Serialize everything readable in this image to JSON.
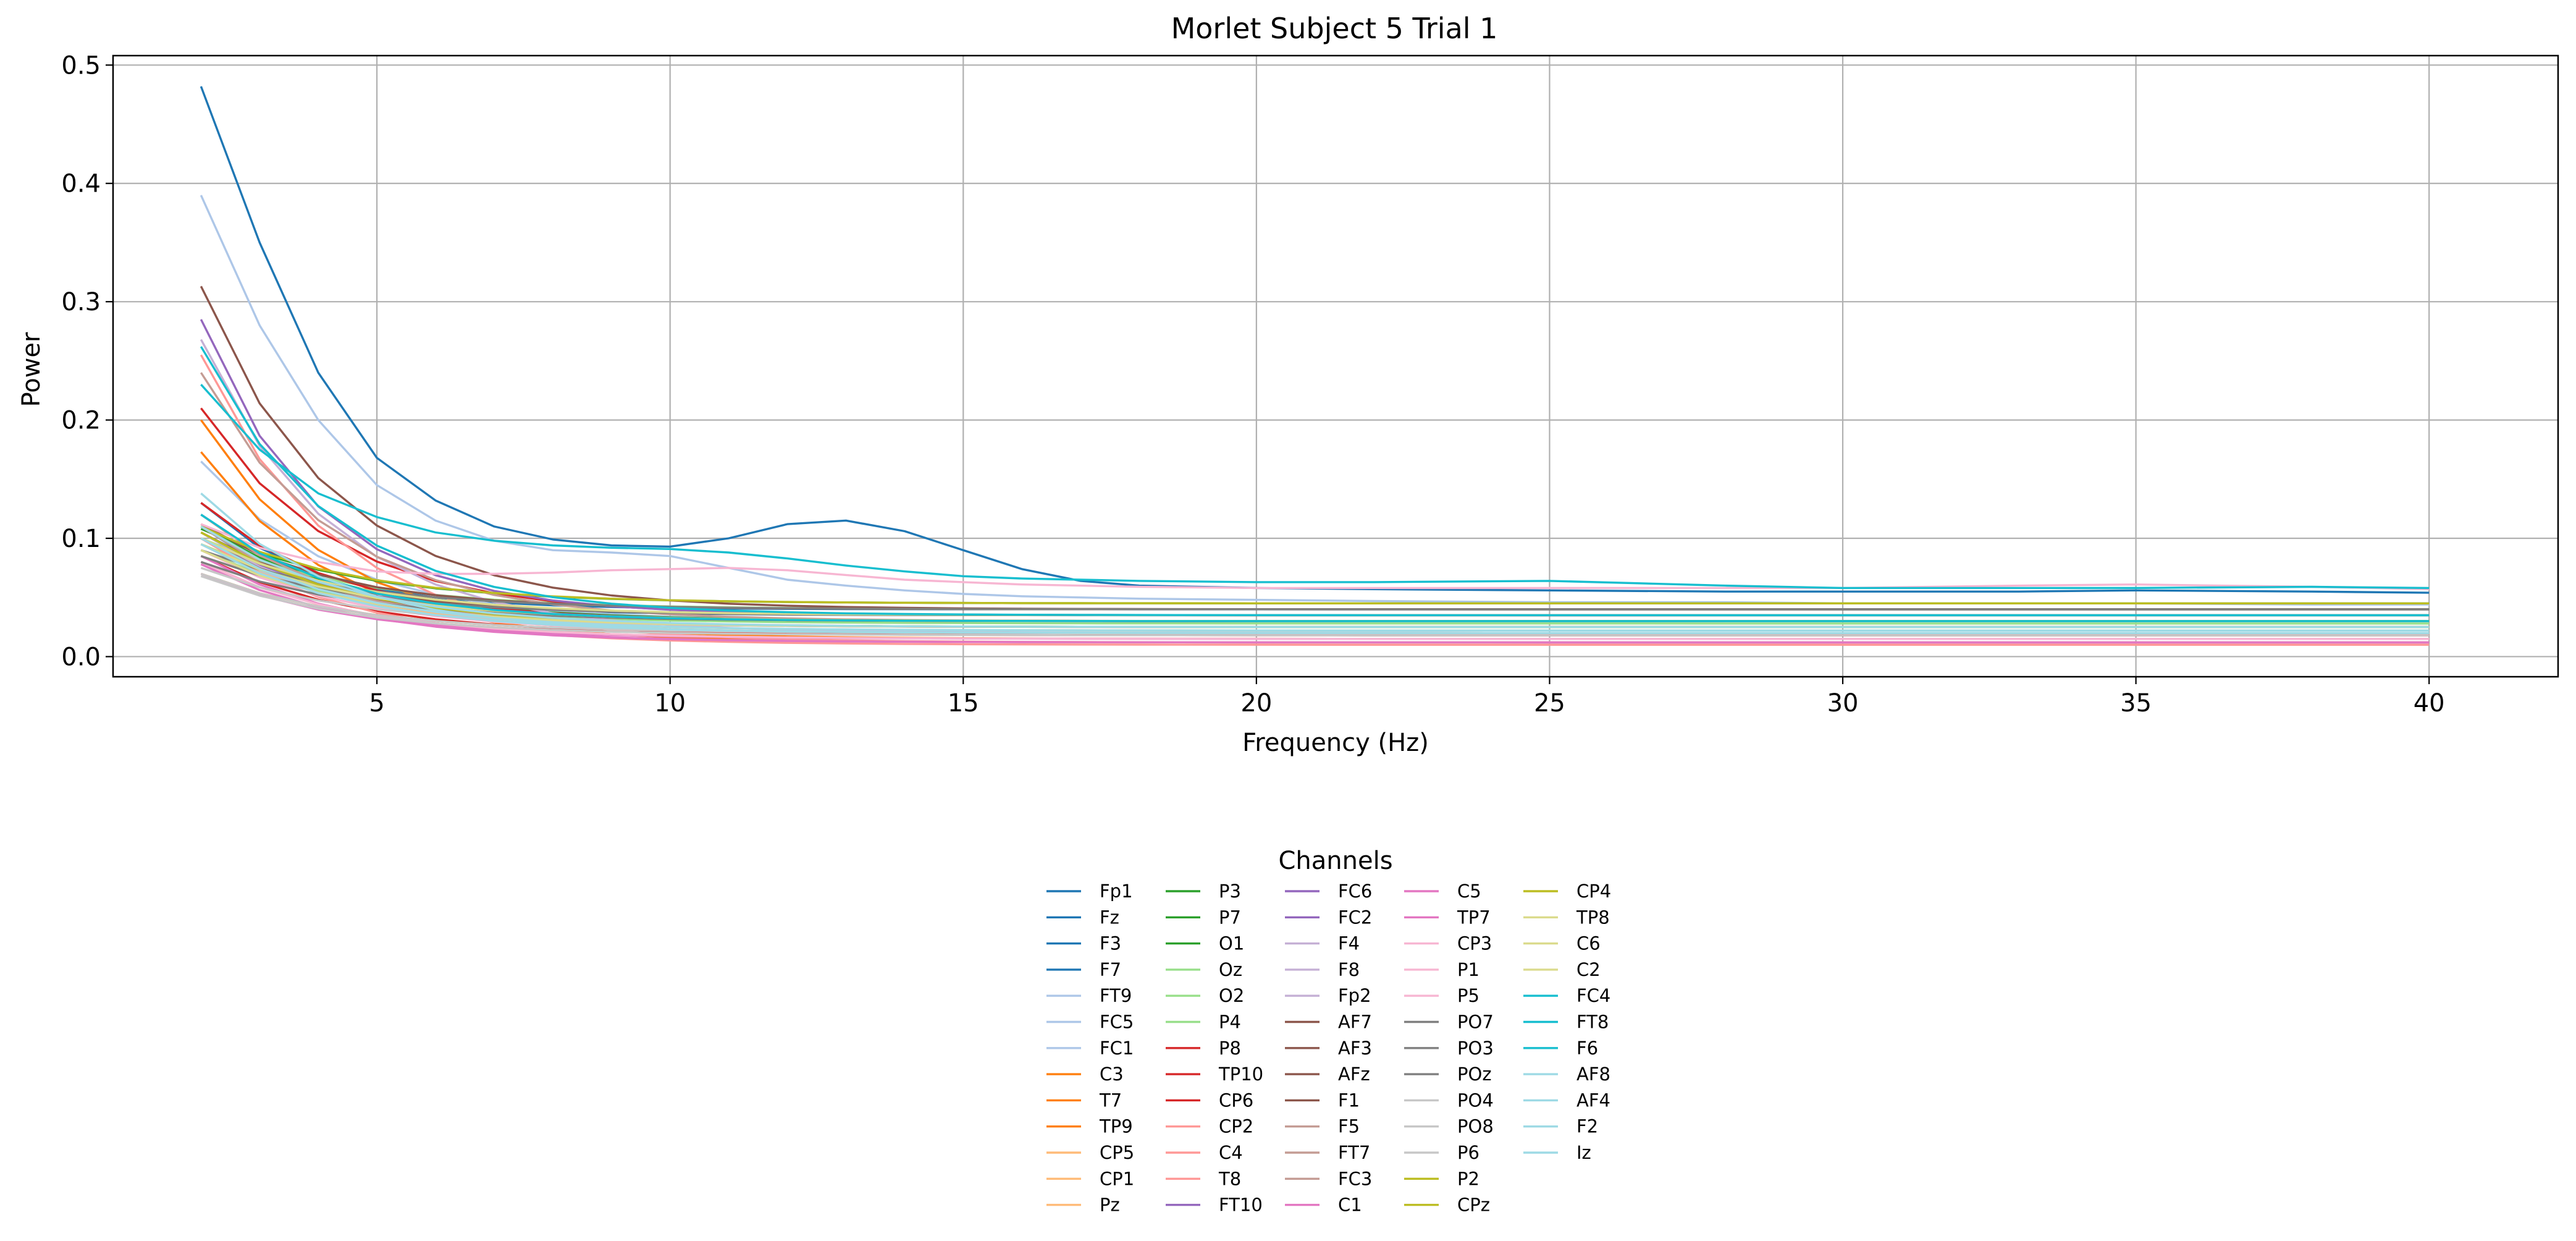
{
  "chart_data": {
    "type": "line",
    "title": "Morlet Subject 5 Trial 1",
    "xlabel": "Frequency (Hz)",
    "ylabel": "Power",
    "xlim": [
      0.5,
      42.2
    ],
    "ylim": [
      -0.017,
      0.508
    ],
    "xticks": [
      5,
      10,
      15,
      20,
      25,
      30,
      35,
      40
    ],
    "yticks": [
      0.0,
      0.1,
      0.2,
      0.3,
      0.4,
      0.5
    ],
    "ytick_labels": [
      "0.0",
      "0.1",
      "0.2",
      "0.3",
      "0.4",
      "0.5"
    ],
    "grid": true,
    "legend": {
      "title": "Channels",
      "placement": "below",
      "columns": 5
    },
    "x": [
      2,
      3,
      4,
      5,
      6,
      7,
      8,
      9,
      10,
      11,
      12,
      13,
      14,
      15,
      16,
      17,
      18,
      20,
      22,
      25,
      28,
      30,
      33,
      35,
      38,
      40
    ],
    "series": [
      {
        "name": "Fp1",
        "color": "#1f77b4",
        "start": 0.13,
        "end": 0.04,
        "k": 0.55
      },
      {
        "name": "Fz",
        "color": "#1f77b4",
        "start": 0.11,
        "end": 0.03,
        "k": 0.5
      },
      {
        "name": "F3",
        "color": "#1f77b4",
        "start": 0.12,
        "end": 0.035,
        "k": 0.5
      },
      {
        "name": "F7",
        "color": "#1f77b4",
        "values": [
          0.482,
          0.35,
          0.24,
          0.168,
          0.132,
          0.11,
          0.099,
          0.094,
          0.093,
          0.1,
          0.112,
          0.115,
          0.106,
          0.09,
          0.074,
          0.064,
          0.06,
          0.058,
          0.057,
          0.056,
          0.055,
          0.055,
          0.055,
          0.056,
          0.055,
          0.054
        ]
      },
      {
        "name": "FT9",
        "color": "#aec7e8",
        "values": [
          0.39,
          0.28,
          0.2,
          0.145,
          0.115,
          0.098,
          0.09,
          0.088,
          0.085,
          0.075,
          0.065,
          0.06,
          0.056,
          0.053,
          0.051,
          0.05,
          0.049,
          0.048,
          0.047,
          0.046,
          0.046,
          0.045,
          0.045,
          0.045,
          0.044,
          0.044
        ]
      },
      {
        "name": "FC5",
        "color": "#aec7e8",
        "start": 0.165,
        "end": 0.03,
        "k": 0.45
      },
      {
        "name": "FC1",
        "color": "#aec7e8",
        "start": 0.1,
        "end": 0.03,
        "k": 0.5
      },
      {
        "name": "C3",
        "color": "#ff7f0e",
        "start": 0.2,
        "end": 0.015,
        "k": 0.45
      },
      {
        "name": "T7",
        "color": "#ff7f0e",
        "start": 0.173,
        "end": 0.012,
        "k": 0.45
      },
      {
        "name": "TP9",
        "color": "#ff7f0e",
        "start": 0.07,
        "end": 0.02,
        "k": 0.4
      },
      {
        "name": "CP5",
        "color": "#ffbb78",
        "start": 0.1,
        "end": 0.025,
        "k": 0.4
      },
      {
        "name": "CP1",
        "color": "#ffbb78",
        "start": 0.11,
        "end": 0.03,
        "k": 0.45
      },
      {
        "name": "Pz",
        "color": "#ffbb78",
        "start": 0.095,
        "end": 0.022,
        "k": 0.4
      },
      {
        "name": "P3",
        "color": "#2ca02c",
        "start": 0.11,
        "end": 0.03,
        "k": 0.4
      },
      {
        "name": "P7",
        "color": "#2ca02c",
        "start": 0.1,
        "end": 0.025,
        "k": 0.4
      },
      {
        "name": "O1",
        "color": "#2ca02c",
        "start": 0.108,
        "end": 0.045,
        "k": 0.4
      },
      {
        "name": "Oz",
        "color": "#98df8a",
        "start": 0.1,
        "end": 0.04,
        "k": 0.4
      },
      {
        "name": "O2",
        "color": "#98df8a",
        "start": 0.095,
        "end": 0.035,
        "k": 0.4
      },
      {
        "name": "P4",
        "color": "#98df8a",
        "start": 0.09,
        "end": 0.028,
        "k": 0.4
      },
      {
        "name": "P8",
        "color": "#d62728",
        "start": 0.21,
        "end": 0.035,
        "k": 0.45
      },
      {
        "name": "TP10",
        "color": "#d62728",
        "start": 0.13,
        "end": 0.03,
        "k": 0.45
      },
      {
        "name": "CP6",
        "color": "#d62728",
        "start": 0.085,
        "end": 0.018,
        "k": 0.4
      },
      {
        "name": "CP2",
        "color": "#ff9896",
        "start": 0.08,
        "end": 0.015,
        "k": 0.4
      },
      {
        "name": "C4",
        "color": "#ff9896",
        "start": 0.1,
        "end": 0.01,
        "k": 0.4
      },
      {
        "name": "T8",
        "color": "#ff9896",
        "start": 0.255,
        "end": 0.012,
        "k": 0.45
      },
      {
        "name": "FT10",
        "color": "#9467bd",
        "start": 0.1,
        "end": 0.03,
        "k": 0.4
      },
      {
        "name": "FC6",
        "color": "#9467bd",
        "start": 0.285,
        "end": 0.035,
        "k": 0.5
      },
      {
        "name": "FC2",
        "color": "#9467bd",
        "start": 0.09,
        "end": 0.025,
        "k": 0.4
      },
      {
        "name": "F4",
        "color": "#c5b0d5",
        "start": 0.268,
        "end": 0.02,
        "k": 0.45
      },
      {
        "name": "F8",
        "color": "#c5b0d5",
        "start": 0.11,
        "end": 0.025,
        "k": 0.45
      },
      {
        "name": "Fp2",
        "color": "#c5b0d5",
        "start": 0.105,
        "end": 0.025,
        "k": 0.45
      },
      {
        "name": "AF7",
        "color": "#8c564b",
        "start": 0.313,
        "end": 0.04,
        "k": 0.45
      },
      {
        "name": "AF3",
        "color": "#8c564b",
        "start": 0.112,
        "end": 0.04,
        "k": 0.45
      },
      {
        "name": "AFz",
        "color": "#8c564b",
        "start": 0.105,
        "end": 0.035,
        "k": 0.45
      },
      {
        "name": "F1",
        "color": "#8c564b",
        "start": 0.1,
        "end": 0.03,
        "k": 0.45
      },
      {
        "name": "F5",
        "color": "#c49c94",
        "start": 0.24,
        "end": 0.03,
        "k": 0.45
      },
      {
        "name": "FT7",
        "color": "#c49c94",
        "start": 0.12,
        "end": 0.025,
        "k": 0.45
      },
      {
        "name": "FC3",
        "color": "#c49c94",
        "start": 0.11,
        "end": 0.025,
        "k": 0.45
      },
      {
        "name": "C1",
        "color": "#e377c2",
        "start": 0.085,
        "end": 0.012,
        "k": 0.4
      },
      {
        "name": "C5",
        "color": "#e377c2",
        "start": 0.078,
        "end": 0.012,
        "k": 0.4
      },
      {
        "name": "TP7",
        "color": "#e377c2",
        "start": 0.07,
        "end": 0.015,
        "k": 0.4
      },
      {
        "name": "CP3",
        "color": "#f7b6d2",
        "start": 0.08,
        "end": 0.015,
        "k": 0.4
      },
      {
        "name": "P1",
        "color": "#f7b6d2",
        "start": 0.09,
        "end": 0.02,
        "k": 0.4
      },
      {
        "name": "P5",
        "color": "#f7b6d2",
        "values": [
          0.112,
          0.092,
          0.08,
          0.072,
          0.07,
          0.07,
          0.071,
          0.073,
          0.074,
          0.075,
          0.073,
          0.069,
          0.065,
          0.063,
          0.061,
          0.06,
          0.059,
          0.058,
          0.058,
          0.058,
          0.058,
          0.058,
          0.06,
          0.061,
          0.059,
          0.057
        ]
      },
      {
        "name": "PO7",
        "color": "#7f7f7f",
        "start": 0.09,
        "end": 0.04,
        "k": 0.4
      },
      {
        "name": "PO3",
        "color": "#7f7f7f",
        "start": 0.085,
        "end": 0.035,
        "k": 0.4
      },
      {
        "name": "POz",
        "color": "#7f7f7f",
        "start": 0.08,
        "end": 0.03,
        "k": 0.4
      },
      {
        "name": "PO4",
        "color": "#c7c7c7",
        "start": 0.075,
        "end": 0.025,
        "k": 0.4
      },
      {
        "name": "PO8",
        "color": "#c7c7c7",
        "start": 0.07,
        "end": 0.02,
        "k": 0.4
      },
      {
        "name": "P6",
        "color": "#c7c7c7",
        "start": 0.068,
        "end": 0.018,
        "k": 0.4
      },
      {
        "name": "P2",
        "color": "#bcbd22",
        "start": 0.095,
        "end": 0.03,
        "k": 0.4
      },
      {
        "name": "CPz",
        "color": "#bcbd22",
        "start": 0.105,
        "end": 0.025,
        "k": 0.4
      },
      {
        "name": "CP4",
        "color": "#bcbd22",
        "start": 0.11,
        "end": 0.045,
        "k": 0.4
      },
      {
        "name": "TP8",
        "color": "#dbdb8d",
        "start": 0.1,
        "end": 0.035,
        "k": 0.4
      },
      {
        "name": "C6",
        "color": "#dbdb8d",
        "start": 0.095,
        "end": 0.03,
        "k": 0.4
      },
      {
        "name": "C2",
        "color": "#dbdb8d",
        "start": 0.09,
        "end": 0.025,
        "k": 0.4
      },
      {
        "name": "FC4",
        "color": "#17becf",
        "values": [
          0.23,
          0.175,
          0.138,
          0.118,
          0.105,
          0.098,
          0.094,
          0.092,
          0.091,
          0.088,
          0.083,
          0.077,
          0.072,
          0.068,
          0.066,
          0.065,
          0.064,
          0.063,
          0.063,
          0.064,
          0.06,
          0.058,
          0.058,
          0.058,
          0.059,
          0.058
        ]
      },
      {
        "name": "FT8",
        "color": "#17becf",
        "start": 0.262,
        "end": 0.035,
        "k": 0.45
      },
      {
        "name": "F6",
        "color": "#17becf",
        "start": 0.12,
        "end": 0.03,
        "k": 0.45
      },
      {
        "name": "AF8",
        "color": "#9edae5",
        "start": 0.11,
        "end": 0.025,
        "k": 0.4
      },
      {
        "name": "AF4",
        "color": "#9edae5",
        "start": 0.1,
        "end": 0.022,
        "k": 0.4
      },
      {
        "name": "F2",
        "color": "#9edae5",
        "start": 0.095,
        "end": 0.02,
        "k": 0.4
      },
      {
        "name": "Iz",
        "color": "#9edae5",
        "start": 0.138,
        "end": 0.02,
        "k": 0.45
      }
    ]
  }
}
